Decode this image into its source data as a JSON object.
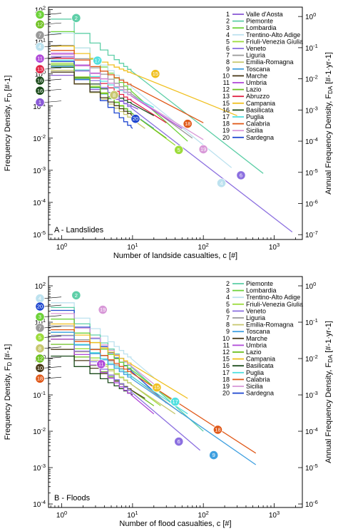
{
  "colors": {
    "1": "#8a5ad6",
    "2": "#5fcfa8",
    "3": "#6ed23a",
    "4": "#bde2ef",
    "5": "#9ddc3c",
    "6": "#8c70e0",
    "7": "#9a9a9a",
    "8": "#c8c870",
    "9": "#3fa0e0",
    "10": "#4a3a18",
    "11": "#b04ad8",
    "12": "#6ec020",
    "13": "#e02040",
    "15": "#f0c020",
    "16": "#1a4a1a",
    "17": "#50e0e0",
    "18": "#e05818",
    "19": "#d898d8",
    "20": "#2048d0"
  },
  "chart_data": [
    {
      "type": "line",
      "panel_label": "A - Landslides",
      "xlabel": "Number of landside casualties, c [#]",
      "ylabel_left": "Frequency Density, F",
      "ylabel_left_sub": "D",
      "ylabel_left_unit": " [#-1]",
      "ylabel_right": "Annual Frequency Density, F",
      "ylabel_right_sub": "DA",
      "ylabel_right_unit": " [#-1·yr-1]",
      "xscale": "log",
      "yscale": "log",
      "xlim": [
        0.65,
        2500
      ],
      "ylim": [
        7e-06,
        120
      ],
      "right_ylim": [
        7e-08,
        2.0
      ],
      "x_ticks": [
        "10^0",
        "10^1",
        "10^2",
        "10^3"
      ],
      "y_ticks": [
        "10^2",
        "10^1",
        "10^0",
        "10^-1",
        "10^-2",
        "10^-3",
        "10^-4",
        "10^-5"
      ],
      "right_y_ticks": [
        "10^0",
        "10^-1",
        "10^-2",
        "10^-3",
        "10^-4",
        "10^-5",
        "10^-6",
        "10^-7"
      ],
      "legend": [
        {
          "id": "1",
          "label": "Valle d'Aosta"
        },
        {
          "id": "2",
          "label": "Piemonte"
        },
        {
          "id": "3",
          "label": "Lombardia"
        },
        {
          "id": "4",
          "label": "Trentino-Alto Adige"
        },
        {
          "id": "5",
          "label": "Friuli-Venezia Giulia"
        },
        {
          "id": "6",
          "label": "Veneto"
        },
        {
          "id": "7",
          "label": "Liguria"
        },
        {
          "id": "8",
          "label": "Emilia-Romagna"
        },
        {
          "id": "9",
          "label": "Toscana"
        },
        {
          "id": "10",
          "label": "Marche"
        },
        {
          "id": "11",
          "label": "Umbria"
        },
        {
          "id": "12",
          "label": "Lazio"
        },
        {
          "id": "13",
          "label": "Abruzzo"
        },
        {
          "id": "15",
          "label": "Campania"
        },
        {
          "id": "16",
          "label": "Basilicata"
        },
        {
          "id": "17",
          "label": "Puglia"
        },
        {
          "id": "18",
          "label": "Calabria"
        },
        {
          "id": "19",
          "label": "Sicilia"
        },
        {
          "id": "20",
          "label": "Sardegna"
        }
      ],
      "series": [
        {
          "id": "2",
          "start": 60,
          "end": [
            700,
            0.0008
          ]
        },
        {
          "id": "3",
          "start": 25,
          "end": [
            60,
            0.008
          ]
        },
        {
          "id": "7",
          "start": 9,
          "end": [
            70,
            0.01
          ]
        },
        {
          "id": "4",
          "start": 22,
          "end": [
            250,
            0.0012
          ]
        },
        {
          "id": "11",
          "start": 5,
          "end": [
            50,
            0.02
          ]
        },
        {
          "id": "13",
          "start": 3.5,
          "end": [
            30,
            0.03
          ]
        },
        {
          "id": "16",
          "start": 1.8,
          "end": [
            20,
            0.05
          ]
        },
        {
          "id": "1",
          "start": 1.0,
          "end": [
            12,
            0.08
          ]
        },
        {
          "id": "6",
          "start": 4,
          "end": [
            1800,
            1.2e-05
          ]
        },
        {
          "id": "15",
          "start": 8,
          "end": [
            300,
            0.05
          ]
        },
        {
          "id": "18",
          "start": 6,
          "end": [
            100,
            0.03
          ]
        },
        {
          "id": "17",
          "start": 3,
          "end": [
            20,
            0.09
          ]
        },
        {
          "id": "8",
          "start": 1.5,
          "end": [
            15,
            0.02
          ]
        },
        {
          "id": "5",
          "start": 2.5,
          "end": [
            40,
            0.006
          ]
        },
        {
          "id": "19",
          "start": 4.5,
          "end": [
            100,
            0.009
          ]
        },
        {
          "id": "20",
          "start": 3,
          "end": [
            10,
            0.02
          ]
        },
        {
          "id": "9",
          "start": 2,
          "end": [
            20,
            0.02
          ]
        },
        {
          "id": "12",
          "start": 2.2,
          "end": [
            30,
            0.01
          ]
        },
        {
          "id": "10",
          "start": 1.3,
          "end": [
            10,
            0.05
          ]
        }
      ],
      "left_bubbles": [
        {
          "id": "3",
          "y": 70
        },
        {
          "id": "12",
          "y": 35
        },
        {
          "id": "7",
          "y": 16
        },
        {
          "id": "4",
          "y": 7
        },
        {
          "id": "11",
          "y": 3.0
        },
        {
          "id": "13",
          "y": 1.4
        },
        {
          "id": "16",
          "y": 0.62
        },
        {
          "id": "16",
          "y": 0.3
        },
        {
          "id": "1",
          "y": 0.13
        }
      ],
      "bubbles": [
        {
          "id": "2",
          "x": 1.6,
          "y": 55
        },
        {
          "id": "17",
          "x": 3.2,
          "y": 2.6
        },
        {
          "id": "8",
          "x": 5.5,
          "y": 0.22
        },
        {
          "id": "15",
          "x": 21,
          "y": 1.0
        },
        {
          "id": "20",
          "x": 11,
          "y": 0.04
        },
        {
          "id": "18",
          "x": 60,
          "y": 0.028
        },
        {
          "id": "19",
          "x": 100,
          "y": 0.0045
        },
        {
          "id": "5",
          "x": 45,
          "y": 0.0043
        },
        {
          "id": "4",
          "x": 180,
          "y": 0.0004
        },
        {
          "id": "6",
          "x": 340,
          "y": 0.0007
        }
      ]
    },
    {
      "type": "line",
      "panel_label": "B - Floods",
      "xlabel": "Number of flood casualties, c [#]",
      "ylabel_left": "Frequency Density, F",
      "ylabel_left_sub": "D",
      "ylabel_left_unit": " [#-1]",
      "ylabel_right": "Annual Frequency Density, F",
      "ylabel_right_sub": "DA",
      "ylabel_right_unit": " [#-1·yr-1]",
      "xscale": "log",
      "yscale": "log",
      "xlim": [
        0.65,
        2500
      ],
      "ylim": [
        8e-05,
        180
      ],
      "right_ylim": [
        8e-07,
        1.8
      ],
      "x_ticks": [
        "10^0",
        "10^1",
        "10^2",
        "10^3"
      ],
      "y_ticks": [
        "10^2",
        "10^1",
        "10^0",
        "10^-1",
        "10^-2",
        "10^-3",
        "10^-4"
      ],
      "right_y_ticks": [
        "10^0",
        "10^-1",
        "10^-2",
        "10^-3",
        "10^-4",
        "10^-5",
        "10^-6"
      ],
      "legend": [
        {
          "id": "2",
          "label": "Piemonte"
        },
        {
          "id": "3",
          "label": "Lombardia"
        },
        {
          "id": "4",
          "label": "Trentino-Alto Adige"
        },
        {
          "id": "5",
          "label": "Friuli-Venezia Giulia"
        },
        {
          "id": "6",
          "label": "Veneto"
        },
        {
          "id": "7",
          "label": "Liguria"
        },
        {
          "id": "8",
          "label": "Emilia-Romagna"
        },
        {
          "id": "9",
          "label": "Toscana"
        },
        {
          "id": "10",
          "label": "Marche"
        },
        {
          "id": "11",
          "label": "Umbria"
        },
        {
          "id": "12",
          "label": "Lazio"
        },
        {
          "id": "15",
          "label": "Campania"
        },
        {
          "id": "16",
          "label": "Basilicata"
        },
        {
          "id": "17",
          "label": "Puglia"
        },
        {
          "id": "18",
          "label": "Calabria"
        },
        {
          "id": "19",
          "label": "Sicilia"
        },
        {
          "id": "20",
          "label": "Sardegna"
        }
      ],
      "series": [
        {
          "id": "4",
          "start": 40,
          "end": [
            20,
            0.3
          ]
        },
        {
          "id": "2",
          "start": 30,
          "end": [
            100,
            0.01
          ]
        },
        {
          "id": "20",
          "start": 25,
          "end": [
            30,
            0.06
          ]
        },
        {
          "id": "19",
          "start": 20,
          "end": [
            20,
            0.2
          ]
        },
        {
          "id": "3",
          "start": 14,
          "end": [
            40,
            0.06
          ]
        },
        {
          "id": "7",
          "start": 9,
          "end": [
            50,
            0.03
          ]
        },
        {
          "id": "5",
          "start": 5,
          "end": [
            25,
            0.05
          ]
        },
        {
          "id": "8",
          "start": 3.8,
          "end": [
            40,
            0.03
          ]
        },
        {
          "id": "12",
          "start": 2.8,
          "end": [
            20,
            0.05
          ]
        },
        {
          "id": "10",
          "start": 2,
          "end": [
            15,
            0.08
          ]
        },
        {
          "id": "16",
          "start": 1.3,
          "end": [
            10,
            0.1
          ]
        },
        {
          "id": "11",
          "start": 4,
          "end": [
            20,
            0.03
          ]
        },
        {
          "id": "15",
          "start": 10,
          "end": [
            60,
            0.08
          ]
        },
        {
          "id": "17",
          "start": 6,
          "end": [
            60,
            0.03
          ]
        },
        {
          "id": "6",
          "start": 5,
          "end": [
            90,
            0.003
          ]
        },
        {
          "id": "18",
          "start": 7,
          "end": [
            550,
            0.0025
          ]
        },
        {
          "id": "9",
          "start": 6,
          "end": [
            550,
            0.0012
          ]
        }
      ],
      "left_bubbles": [
        {
          "id": "4",
          "y": 45
        },
        {
          "id": "20",
          "y": 27
        },
        {
          "id": "3",
          "y": 14
        },
        {
          "id": "7",
          "y": 7
        },
        {
          "id": "5",
          "y": 3.8
        },
        {
          "id": "8",
          "y": 1.9
        },
        {
          "id": "12",
          "y": 1.0
        },
        {
          "id": "10",
          "y": 0.55
        },
        {
          "id": "18",
          "y": 0.28
        }
      ],
      "bubbles": [
        {
          "id": "2",
          "x": 1.6,
          "y": 55
        },
        {
          "id": "19",
          "x": 3.8,
          "y": 22
        },
        {
          "id": "11",
          "x": 3.6,
          "y": 0.7
        },
        {
          "id": "15",
          "x": 22,
          "y": 0.16
        },
        {
          "id": "17",
          "x": 40,
          "y": 0.065
        },
        {
          "id": "6",
          "x": 45,
          "y": 0.0052
        },
        {
          "id": "18",
          "x": 160,
          "y": 0.011
        },
        {
          "id": "9",
          "x": 140,
          "y": 0.0022
        }
      ]
    }
  ]
}
